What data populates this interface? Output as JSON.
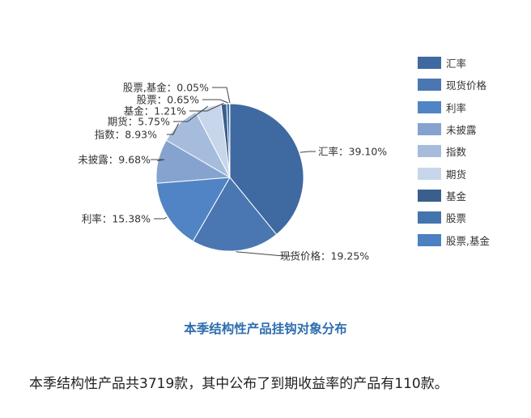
{
  "chart_data": {
    "type": "pie",
    "title": "本季结构性产品挂钩对象分布",
    "legend_position": "right",
    "slices": [
      {
        "name": "汇率",
        "label": "汇率：39.10%",
        "value": 39.1,
        "color": "#3f69a1"
      },
      {
        "name": "现货价格",
        "label": "现货价格：19.25%",
        "value": 19.25,
        "color": "#4a77b2"
      },
      {
        "name": "利率",
        "label": "利率：15.38%",
        "value": 15.38,
        "color": "#5184c4"
      },
      {
        "name": "未披露",
        "label": "未披露：9.68%",
        "value": 9.68,
        "color": "#85a3ce"
      },
      {
        "name": "指数",
        "label": "指数：8.93%",
        "value": 8.93,
        "color": "#a6bcdc"
      },
      {
        "name": "期货",
        "label": "期货：5.75%",
        "value": 5.75,
        "color": "#c7d6ea"
      },
      {
        "name": "基金",
        "label": "基金：1.21%",
        "value": 1.21,
        "color": "#3a5f8c"
      },
      {
        "name": "股票",
        "label": "股票：0.65%",
        "value": 0.65,
        "color": "#4474ad"
      },
      {
        "name": "股票,基金",
        "label": "股票,基金：0.05%",
        "value": 0.05,
        "color": "#4d80c1"
      }
    ]
  },
  "caption": "本季结构性产品共3719款，其中公布了到期收益率的产品有110款。"
}
